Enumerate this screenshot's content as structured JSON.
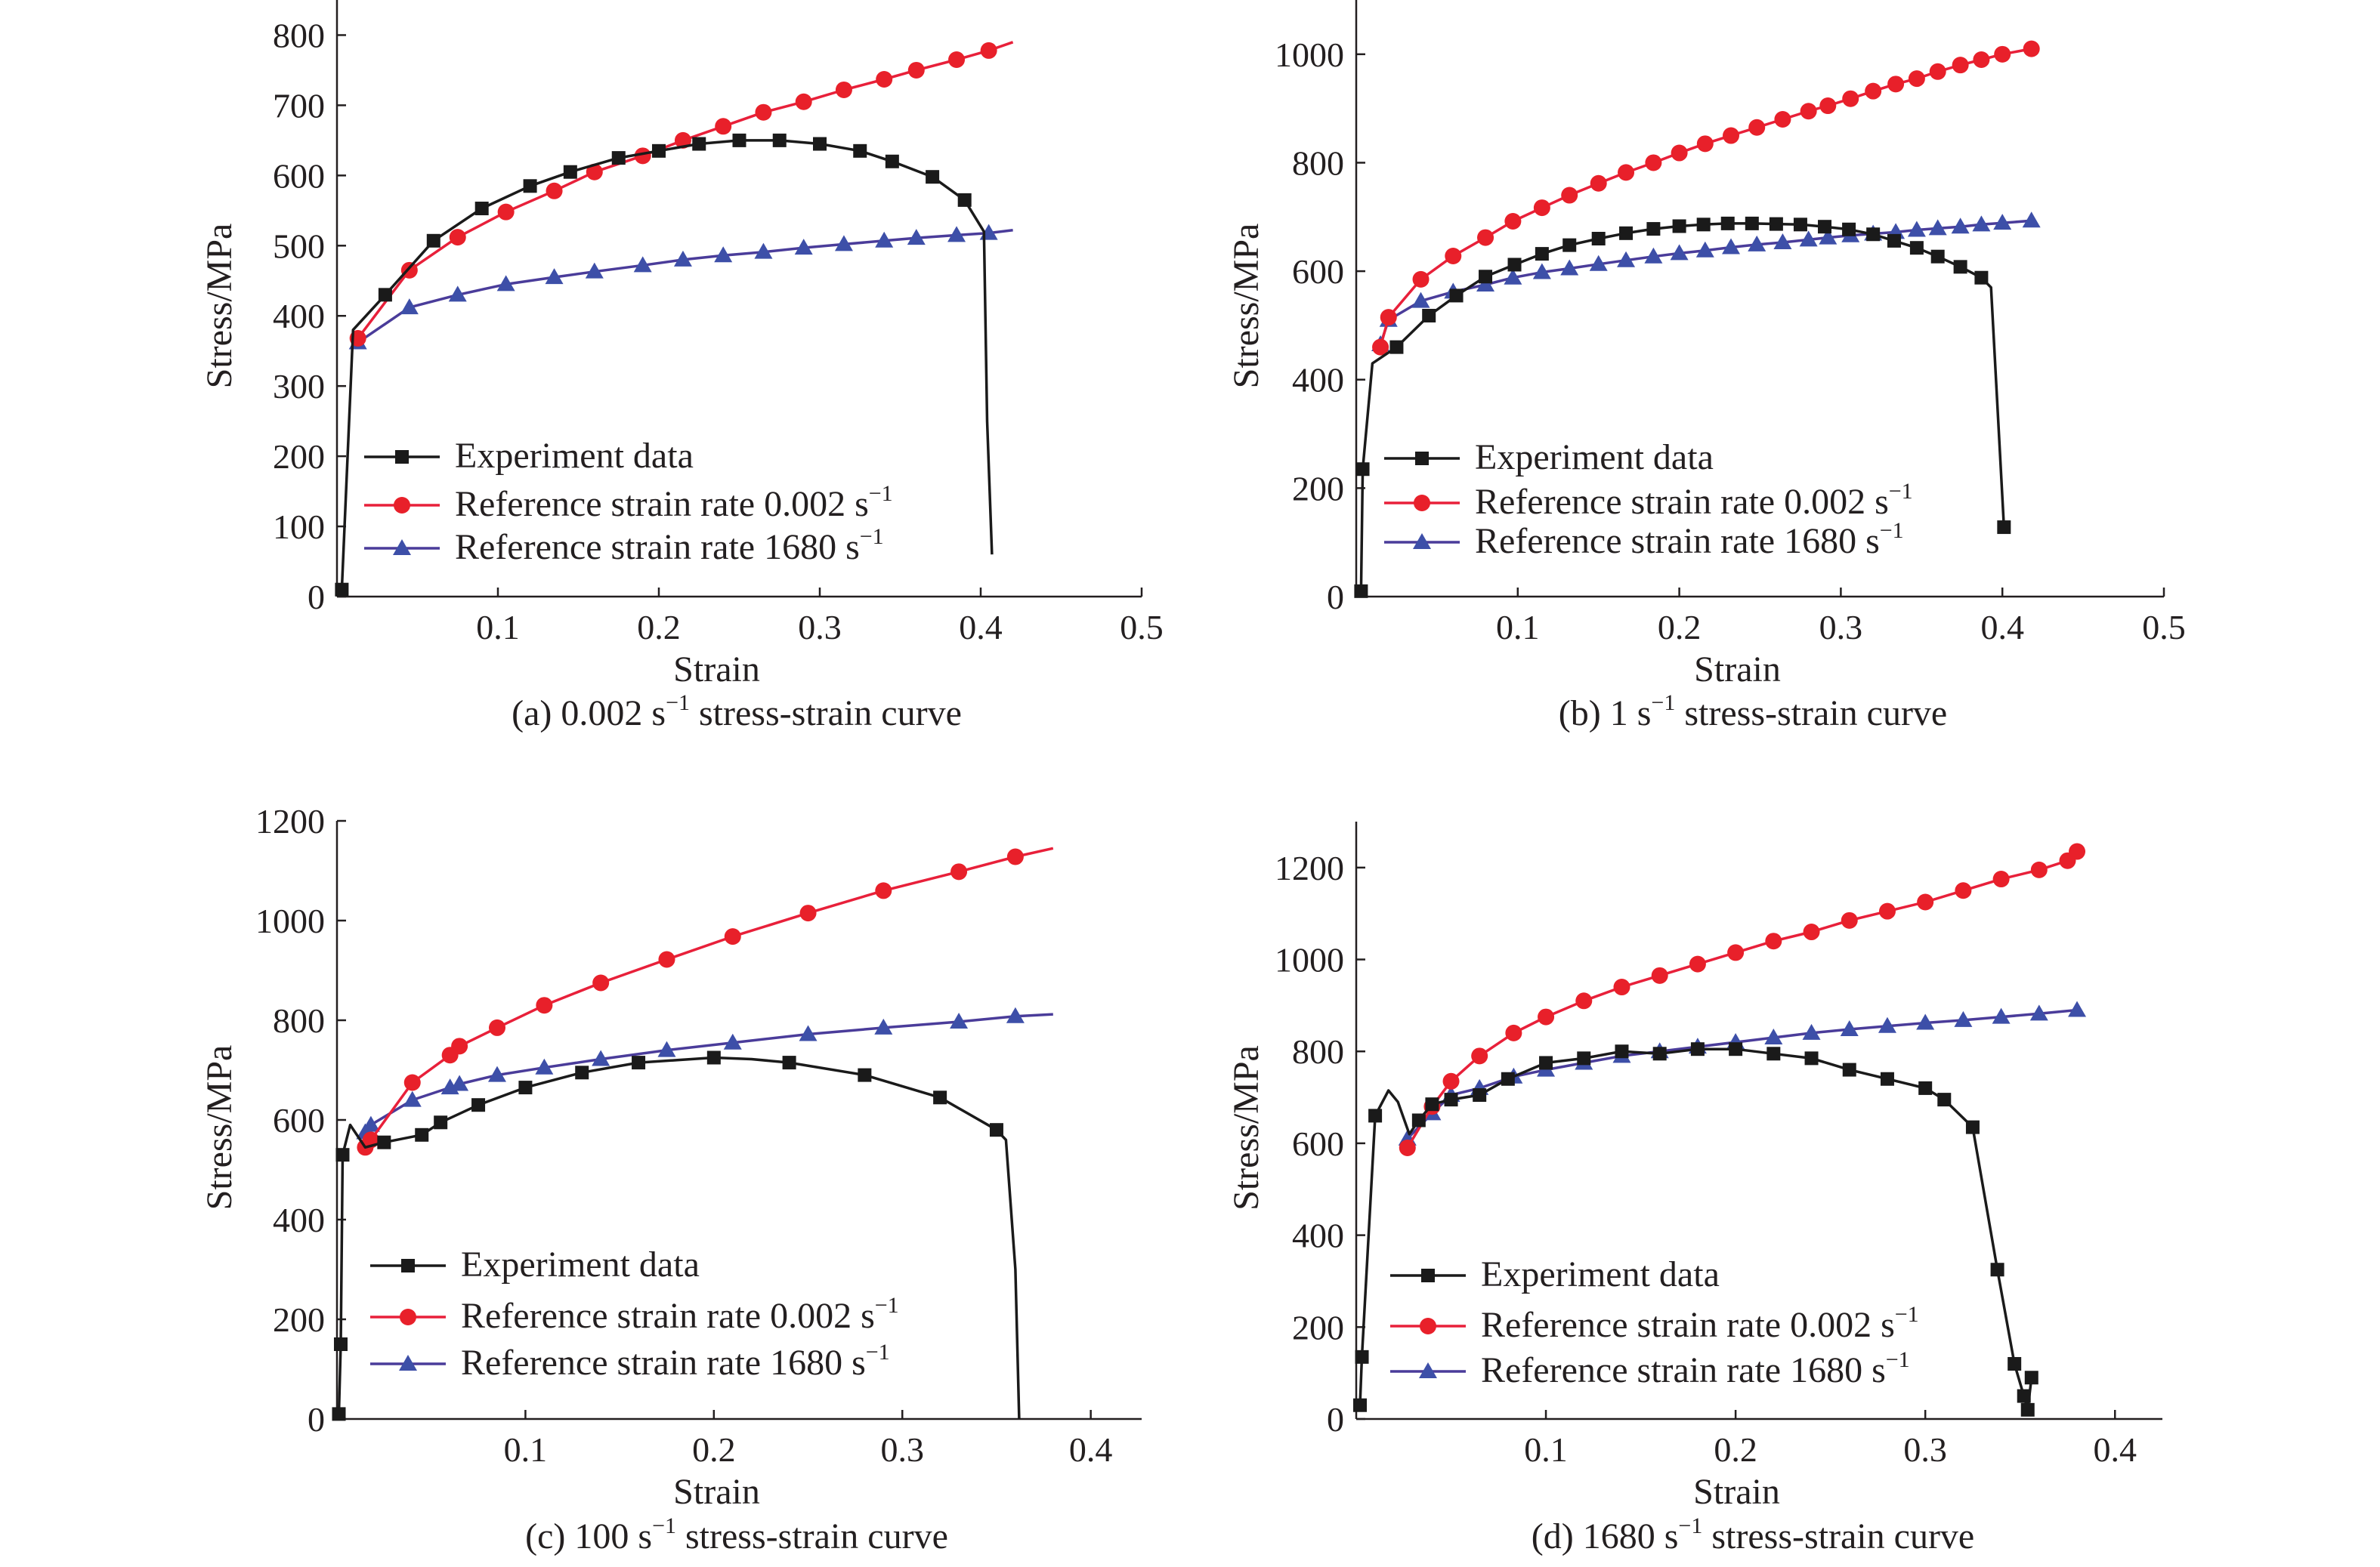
{
  "colors": {
    "experiment": "#1a1a1a",
    "ref_0002": "#e8202a",
    "ref_1680": "#3d4fa8",
    "ref_0002_line": "#e8203a",
    "ref_1680_line": "#4a3c9a"
  },
  "legend": [
    {
      "key": "experiment",
      "label": "Experiment data",
      "sup": "",
      "marker": "square"
    },
    {
      "key": "ref_0002",
      "label": "Reference strain rate 0.002 s",
      "sup": "−1",
      "marker": "circle"
    },
    {
      "key": "ref_1680",
      "label": "Reference strain rate 1680 s",
      "sup": "−1",
      "marker": "triangle"
    }
  ],
  "chart_data": [
    {
      "type": "line",
      "caption": {
        "prefix": "(a) 0.002 s",
        "sup": "−1",
        "suffix": " stress-strain curve"
      },
      "xlabel": "Strain",
      "ylabel": "Stress/MPa",
      "xlim": [
        0,
        0.5
      ],
      "ylim": [
        0,
        850
      ],
      "xticks": [
        0.1,
        0.2,
        0.3,
        0.4,
        0.5
      ],
      "xtick_labels": [
        "0.1",
        "0.2",
        "0.3",
        "0.4",
        "0.5"
      ],
      "yticks": [
        0,
        100,
        200,
        300,
        400,
        500,
        600,
        700,
        800
      ],
      "ytick_labels": [
        "0",
        "100",
        "200",
        "300",
        "400",
        "500",
        "600",
        "700",
        "800"
      ],
      "legend_position": "lower-left",
      "series": [
        {
          "name": "Experiment data",
          "key": "experiment",
          "x": [
            0.003,
            0.01,
            0.03,
            0.06,
            0.09,
            0.12,
            0.145,
            0.175,
            0.2,
            0.225,
            0.25,
            0.275,
            0.3,
            0.325,
            0.345,
            0.37,
            0.39,
            0.402,
            0.404,
            0.407
          ],
          "y": [
            10,
            380,
            430,
            507,
            553,
            585,
            605,
            625,
            635,
            645,
            650,
            650,
            645,
            635,
            620,
            598,
            565,
            520,
            250,
            60
          ],
          "markers": [
            0,
            2,
            3,
            4,
            5,
            6,
            7,
            8,
            9,
            10,
            11,
            12,
            13,
            14,
            15,
            16
          ]
        },
        {
          "name": "Reference strain rate 0.002 s−1",
          "key": "ref_0002",
          "x": [
            0.013,
            0.045,
            0.075,
            0.105,
            0.135,
            0.16,
            0.19,
            0.215,
            0.24,
            0.265,
            0.29,
            0.315,
            0.34,
            0.36,
            0.385,
            0.405,
            0.42
          ],
          "y": [
            368,
            465,
            512,
            548,
            578,
            605,
            628,
            650,
            670,
            690,
            705,
            722,
            737,
            750,
            765,
            778,
            790
          ],
          "markers": [
            0,
            1,
            2,
            3,
            4,
            5,
            6,
            7,
            8,
            9,
            10,
            11,
            12,
            13,
            14,
            15
          ]
        },
        {
          "name": "Reference strain rate 1680 s−1",
          "key": "ref_1680",
          "x": [
            0.013,
            0.045,
            0.075,
            0.105,
            0.135,
            0.16,
            0.19,
            0.215,
            0.24,
            0.265,
            0.29,
            0.315,
            0.34,
            0.36,
            0.385,
            0.405,
            0.42
          ],
          "y": [
            362,
            412,
            430,
            445,
            455,
            463,
            472,
            480,
            486,
            491,
            497,
            502,
            507,
            511,
            515,
            518,
            522
          ],
          "markers": [
            0,
            1,
            2,
            3,
            4,
            5,
            6,
            7,
            8,
            9,
            10,
            11,
            12,
            13,
            14,
            15
          ]
        }
      ]
    },
    {
      "type": "line",
      "caption": {
        "prefix": "(b) 1 s",
        "sup": "−1",
        "suffix": " stress-strain curve"
      },
      "xlabel": "Strain",
      "ylabel": "Stress/MPa",
      "xlim": [
        0,
        0.5
      ],
      "ylim": [
        0,
        1100
      ],
      "xticks": [
        0.1,
        0.2,
        0.3,
        0.4,
        0.5
      ],
      "xtick_labels": [
        "0.1",
        "0.2",
        "0.3",
        "0.4",
        "0.5"
      ],
      "yticks": [
        0,
        200,
        400,
        600,
        800,
        1000
      ],
      "ytick_labels": [
        "0",
        "200",
        "400",
        "600",
        "800",
        "1000"
      ],
      "legend_position": "lower-left",
      "series": [
        {
          "name": "Experiment data",
          "key": "experiment",
          "x": [
            0.003,
            0.004,
            0.01,
            0.025,
            0.045,
            0.062,
            0.08,
            0.098,
            0.115,
            0.132,
            0.15,
            0.167,
            0.184,
            0.2,
            0.215,
            0.23,
            0.245,
            0.26,
            0.275,
            0.29,
            0.305,
            0.32,
            0.333,
            0.347,
            0.36,
            0.374,
            0.387,
            0.393,
            0.401
          ],
          "y": [
            10,
            235,
            430,
            460,
            518,
            555,
            590,
            612,
            632,
            648,
            660,
            670,
            678,
            683,
            686,
            688,
            688,
            687,
            686,
            682,
            677,
            668,
            656,
            643,
            627,
            608,
            588,
            570,
            128
          ],
          "markers": [
            0,
            1,
            3,
            4,
            5,
            6,
            7,
            8,
            9,
            10,
            11,
            12,
            13,
            14,
            15,
            16,
            17,
            18,
            19,
            20,
            21,
            22,
            23,
            24,
            25,
            26,
            28
          ]
        },
        {
          "name": "Reference strain rate 0.002 s−1",
          "key": "ref_0002",
          "x": [
            0.015,
            0.02,
            0.04,
            0.06,
            0.08,
            0.097,
            0.115,
            0.132,
            0.15,
            0.167,
            0.184,
            0.2,
            0.216,
            0.232,
            0.248,
            0.264,
            0.28,
            0.292,
            0.306,
            0.32,
            0.334,
            0.347,
            0.36,
            0.374,
            0.387,
            0.4,
            0.418
          ],
          "y": [
            460,
            515,
            585,
            628,
            662,
            692,
            717,
            740,
            762,
            782,
            800,
            818,
            835,
            850,
            865,
            880,
            895,
            905,
            918,
            932,
            945,
            955,
            968,
            980,
            990,
            1000,
            1010
          ],
          "markers": [
            0,
            1,
            2,
            3,
            4,
            5,
            6,
            7,
            8,
            9,
            10,
            11,
            12,
            13,
            14,
            15,
            16,
            17,
            18,
            19,
            20,
            21,
            22,
            23,
            24,
            25,
            26
          ]
        },
        {
          "name": "Reference strain rate 1680 s−1",
          "key": "ref_1680",
          "x": [
            0.015,
            0.02,
            0.04,
            0.06,
            0.08,
            0.097,
            0.115,
            0.132,
            0.15,
            0.167,
            0.184,
            0.2,
            0.216,
            0.232,
            0.248,
            0.264,
            0.28,
            0.292,
            0.306,
            0.32,
            0.334,
            0.347,
            0.36,
            0.374,
            0.387,
            0.4,
            0.418
          ],
          "y": [
            465,
            510,
            545,
            562,
            575,
            588,
            598,
            605,
            613,
            620,
            627,
            633,
            638,
            644,
            649,
            653,
            658,
            662,
            666,
            669,
            672,
            676,
            679,
            682,
            686,
            689,
            693
          ],
          "markers": [
            0,
            1,
            2,
            3,
            4,
            5,
            6,
            7,
            8,
            9,
            10,
            11,
            12,
            13,
            14,
            15,
            16,
            17,
            18,
            19,
            20,
            21,
            22,
            23,
            24,
            25,
            26
          ]
        }
      ]
    },
    {
      "type": "line",
      "caption": {
        "prefix": "(c) 100 s",
        "sup": "−1",
        "suffix": " stress-strain curve"
      },
      "xlabel": "Strain",
      "ylabel": "Stress/MPa",
      "xlim": [
        0,
        0.427
      ],
      "ylim": [
        0,
        1200
      ],
      "xticks": [
        0.1,
        0.2,
        0.3,
        0.4
      ],
      "xtick_labels": [
        "0.1",
        "0.2",
        "0.3",
        "0.4"
      ],
      "yticks": [
        0,
        200,
        400,
        600,
        800,
        1000,
        1200
      ],
      "ytick_labels": [
        "0",
        "200",
        "400",
        "600",
        "800",
        "1000",
        "1200"
      ],
      "legend_position": "lower-left",
      "series": [
        {
          "name": "Experiment data",
          "key": "experiment",
          "x": [
            0.001,
            0.002,
            0.003,
            0.007,
            0.015,
            0.025,
            0.045,
            0.055,
            0.075,
            0.1,
            0.13,
            0.16,
            0.2,
            0.22,
            0.24,
            0.28,
            0.32,
            0.35,
            0.355,
            0.36,
            0.362
          ],
          "y": [
            10,
            150,
            530,
            590,
            545,
            555,
            570,
            595,
            630,
            665,
            695,
            715,
            725,
            722,
            715,
            690,
            645,
            580,
            560,
            300,
            0
          ],
          "markers": [
            0,
            1,
            2,
            5,
            6,
            7,
            8,
            9,
            10,
            11,
            12,
            14,
            15,
            16,
            17
          ]
        },
        {
          "name": "Reference strain rate 0.002 s−1",
          "key": "ref_0002",
          "x": [
            0.015,
            0.018,
            0.04,
            0.06,
            0.065,
            0.085,
            0.11,
            0.14,
            0.175,
            0.21,
            0.25,
            0.29,
            0.33,
            0.36,
            0.38
          ],
          "y": [
            545,
            560,
            675,
            730,
            748,
            785,
            830,
            875,
            922,
            968,
            1015,
            1060,
            1098,
            1128,
            1145
          ],
          "markers": [
            0,
            1,
            2,
            3,
            4,
            5,
            6,
            7,
            8,
            9,
            10,
            11,
            12,
            13
          ]
        },
        {
          "name": "Reference strain rate 1680 s−1",
          "key": "ref_1680",
          "x": [
            0.015,
            0.018,
            0.04,
            0.06,
            0.065,
            0.085,
            0.11,
            0.14,
            0.175,
            0.21,
            0.25,
            0.29,
            0.33,
            0.36,
            0.38
          ],
          "y": [
            575,
            590,
            640,
            665,
            672,
            690,
            705,
            722,
            740,
            755,
            772,
            785,
            797,
            808,
            812
          ],
          "markers": [
            0,
            1,
            2,
            3,
            4,
            5,
            6,
            7,
            8,
            9,
            10,
            11,
            12,
            13
          ]
        }
      ]
    },
    {
      "type": "line",
      "caption": {
        "prefix": "(d) 1680 s",
        "sup": "−1",
        "suffix": " stress-strain curve"
      },
      "xlabel": "Strain",
      "ylabel": "Stress/MPa",
      "xlim": [
        0,
        0.425
      ],
      "ylim": [
        0,
        1300
      ],
      "xticks": [
        0.1,
        0.2,
        0.3,
        0.4
      ],
      "xtick_labels": [
        "0.1",
        "0.2",
        "0.3",
        "0.4"
      ],
      "yticks": [
        0,
        200,
        400,
        600,
        800,
        1000,
        1200
      ],
      "ytick_labels": [
        "0",
        "200",
        "400",
        "600",
        "800",
        "1000",
        "1200"
      ],
      "legend_position": "lower-left",
      "series": [
        {
          "name": "Experiment data",
          "key": "experiment",
          "x": [
            0.002,
            0.003,
            0.01,
            0.017,
            0.022,
            0.028,
            0.033,
            0.04,
            0.05,
            0.065,
            0.08,
            0.1,
            0.12,
            0.14,
            0.16,
            0.18,
            0.2,
            0.22,
            0.24,
            0.26,
            0.28,
            0.3,
            0.31,
            0.325,
            0.338,
            0.347,
            0.352,
            0.354,
            0.356
          ],
          "y": [
            30,
            135,
            660,
            715,
            690,
            620,
            650,
            685,
            695,
            705,
            740,
            775,
            785,
            800,
            795,
            805,
            805,
            795,
            785,
            760,
            740,
            720,
            695,
            635,
            325,
            120,
            50,
            20,
            90
          ],
          "markers": [
            0,
            1,
            2,
            6,
            7,
            8,
            9,
            10,
            11,
            12,
            13,
            14,
            15,
            16,
            17,
            18,
            19,
            20,
            21,
            22,
            23,
            24,
            25,
            26,
            27,
            28
          ]
        },
        {
          "name": "Reference strain rate 0.002 s−1",
          "key": "ref_0002",
          "x": [
            0.027,
            0.04,
            0.05,
            0.065,
            0.083,
            0.1,
            0.12,
            0.14,
            0.16,
            0.18,
            0.2,
            0.22,
            0.24,
            0.26,
            0.28,
            0.3,
            0.32,
            0.34,
            0.36,
            0.375,
            0.38
          ],
          "y": [
            590,
            680,
            735,
            790,
            840,
            875,
            910,
            940,
            965,
            990,
            1015,
            1040,
            1060,
            1085,
            1105,
            1125,
            1150,
            1175,
            1195,
            1215,
            1235
          ],
          "markers": [
            0,
            1,
            2,
            3,
            4,
            5,
            6,
            7,
            8,
            9,
            10,
            11,
            12,
            13,
            14,
            15,
            16,
            17,
            18,
            19,
            20
          ]
        },
        {
          "name": "Reference strain rate 1680 s−1",
          "key": "ref_1680",
          "x": [
            0.027,
            0.04,
            0.05,
            0.065,
            0.083,
            0.1,
            0.12,
            0.14,
            0.16,
            0.18,
            0.2,
            0.22,
            0.24,
            0.26,
            0.28,
            0.3,
            0.32,
            0.34,
            0.36,
            0.38
          ],
          "y": [
            610,
            665,
            705,
            720,
            745,
            760,
            775,
            790,
            800,
            810,
            820,
            830,
            840,
            848,
            855,
            862,
            868,
            875,
            882,
            890
          ],
          "markers": [
            0,
            1,
            2,
            3,
            4,
            5,
            6,
            7,
            8,
            9,
            10,
            11,
            12,
            13,
            14,
            15,
            16,
            17,
            18,
            19
          ]
        }
      ]
    }
  ]
}
